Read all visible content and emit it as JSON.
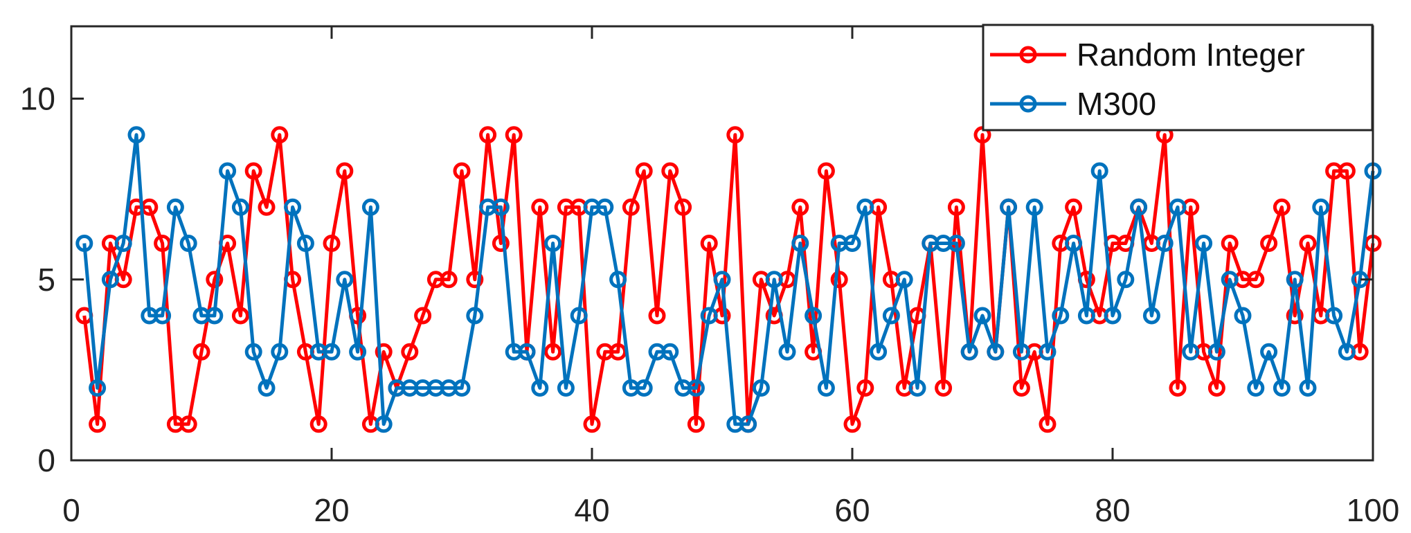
{
  "chart_data": {
    "type": "line",
    "title": "",
    "xlabel": "",
    "ylabel": "",
    "xlim": [
      0,
      100
    ],
    "ylim": [
      0,
      12
    ],
    "x_ticks": [
      0,
      20,
      40,
      60,
      80,
      100
    ],
    "y_ticks": [
      0,
      5,
      10
    ],
    "x_tick_labels": [
      "0",
      "20",
      "40",
      "60",
      "80",
      "100"
    ],
    "y_tick_labels": [
      "0",
      "5",
      "10"
    ],
    "grid": false,
    "legend_position": "top-right",
    "marker": "circle",
    "series": [
      {
        "name": "Random Integer",
        "color": "#ff0000",
        "x": [
          1,
          2,
          3,
          4,
          5,
          6,
          7,
          8,
          9,
          10,
          11,
          12,
          13,
          14,
          15,
          16,
          17,
          18,
          19,
          20,
          21,
          22,
          23,
          24,
          25,
          26,
          27,
          28,
          29,
          30,
          31,
          32,
          33,
          34,
          35,
          36,
          37,
          38,
          39,
          40,
          41,
          42,
          43,
          44,
          45,
          46,
          47,
          48,
          49,
          50,
          51,
          52,
          53,
          54,
          55,
          56,
          57,
          58,
          59,
          60,
          61,
          62,
          63,
          64,
          65,
          66,
          67,
          68,
          69,
          70,
          71,
          72,
          73,
          74,
          75,
          76,
          77,
          78,
          79,
          80,
          81,
          82,
          83,
          84,
          85,
          86,
          87,
          88,
          89,
          90,
          91,
          92,
          93,
          94,
          95,
          96,
          97,
          98,
          99,
          100
        ],
        "values": [
          4,
          1,
          6,
          5,
          7,
          7,
          6,
          1,
          1,
          3,
          5,
          6,
          4,
          8,
          7,
          9,
          5,
          3,
          1,
          6,
          8,
          4,
          1,
          3,
          2,
          3,
          4,
          5,
          5,
          8,
          5,
          9,
          6,
          9,
          3,
          7,
          3,
          7,
          7,
          1,
          3,
          3,
          7,
          8,
          4,
          8,
          7,
          1,
          6,
          4,
          9,
          1,
          5,
          4,
          5,
          7,
          3,
          8,
          5,
          1,
          2,
          7,
          5,
          2,
          4,
          6,
          2,
          7,
          3,
          9,
          3,
          7,
          2,
          3,
          1,
          6,
          7,
          5,
          4,
          6,
          6,
          7,
          6,
          9,
          2,
          7,
          3,
          2,
          6,
          5,
          5,
          6,
          7,
          4,
          6,
          4,
          8,
          8,
          3,
          6
        ]
      },
      {
        "name": "M300",
        "color": "#0072bd",
        "x": [
          1,
          2,
          3,
          4,
          5,
          6,
          7,
          8,
          9,
          10,
          11,
          12,
          13,
          14,
          15,
          16,
          17,
          18,
          19,
          20,
          21,
          22,
          23,
          24,
          25,
          26,
          27,
          28,
          29,
          30,
          31,
          32,
          33,
          34,
          35,
          36,
          37,
          38,
          39,
          40,
          41,
          42,
          43,
          44,
          45,
          46,
          47,
          48,
          49,
          50,
          51,
          52,
          53,
          54,
          55,
          56,
          57,
          58,
          59,
          60,
          61,
          62,
          63,
          64,
          65,
          66,
          67,
          68,
          69,
          70,
          71,
          72,
          73,
          74,
          75,
          76,
          77,
          78,
          79,
          80,
          81,
          82,
          83,
          84,
          85,
          86,
          87,
          88,
          89,
          90,
          91,
          92,
          93,
          94,
          95,
          96,
          97,
          98,
          99,
          100
        ],
        "values": [
          6,
          2,
          5,
          6,
          9,
          4,
          4,
          7,
          6,
          4,
          4,
          8,
          7,
          3,
          2,
          3,
          7,
          6,
          3,
          3,
          5,
          3,
          7,
          1,
          2,
          2,
          2,
          2,
          2,
          2,
          4,
          7,
          7,
          3,
          3,
          2,
          6,
          2,
          4,
          7,
          7,
          5,
          2,
          2,
          3,
          3,
          2,
          2,
          4,
          5,
          1,
          1,
          2,
          5,
          3,
          6,
          4,
          2,
          6,
          6,
          7,
          3,
          4,
          5,
          2,
          6,
          6,
          6,
          3,
          4,
          3,
          7,
          3,
          7,
          3,
          4,
          6,
          4,
          8,
          4,
          5,
          7,
          4,
          6,
          7,
          3,
          6,
          3,
          5,
          4,
          2,
          3,
          2,
          5,
          2,
          7,
          4,
          3,
          5,
          8
        ]
      }
    ]
  }
}
